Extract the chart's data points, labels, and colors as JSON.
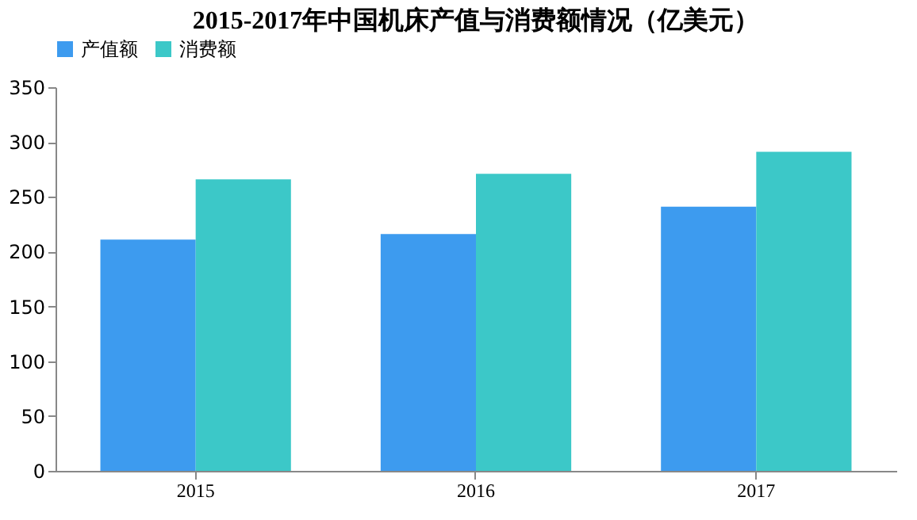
{
  "chart_data": {
    "type": "bar",
    "title": "2015-2017年中国机床产值与消费额情况（亿美元）",
    "categories": [
      "2015",
      "2016",
      "2017"
    ],
    "series": [
      {
        "name": "产值额",
        "color": "#3d9bef",
        "values": [
          211,
          216,
          241
        ]
      },
      {
        "name": "消费额",
        "color": "#3cc8c8",
        "values": [
          266,
          271,
          291
        ]
      }
    ],
    "ylim": [
      0,
      350
    ],
    "yticks": [
      0,
      50,
      100,
      150,
      200,
      250,
      300,
      350
    ],
    "grid": false,
    "legend": "top"
  }
}
